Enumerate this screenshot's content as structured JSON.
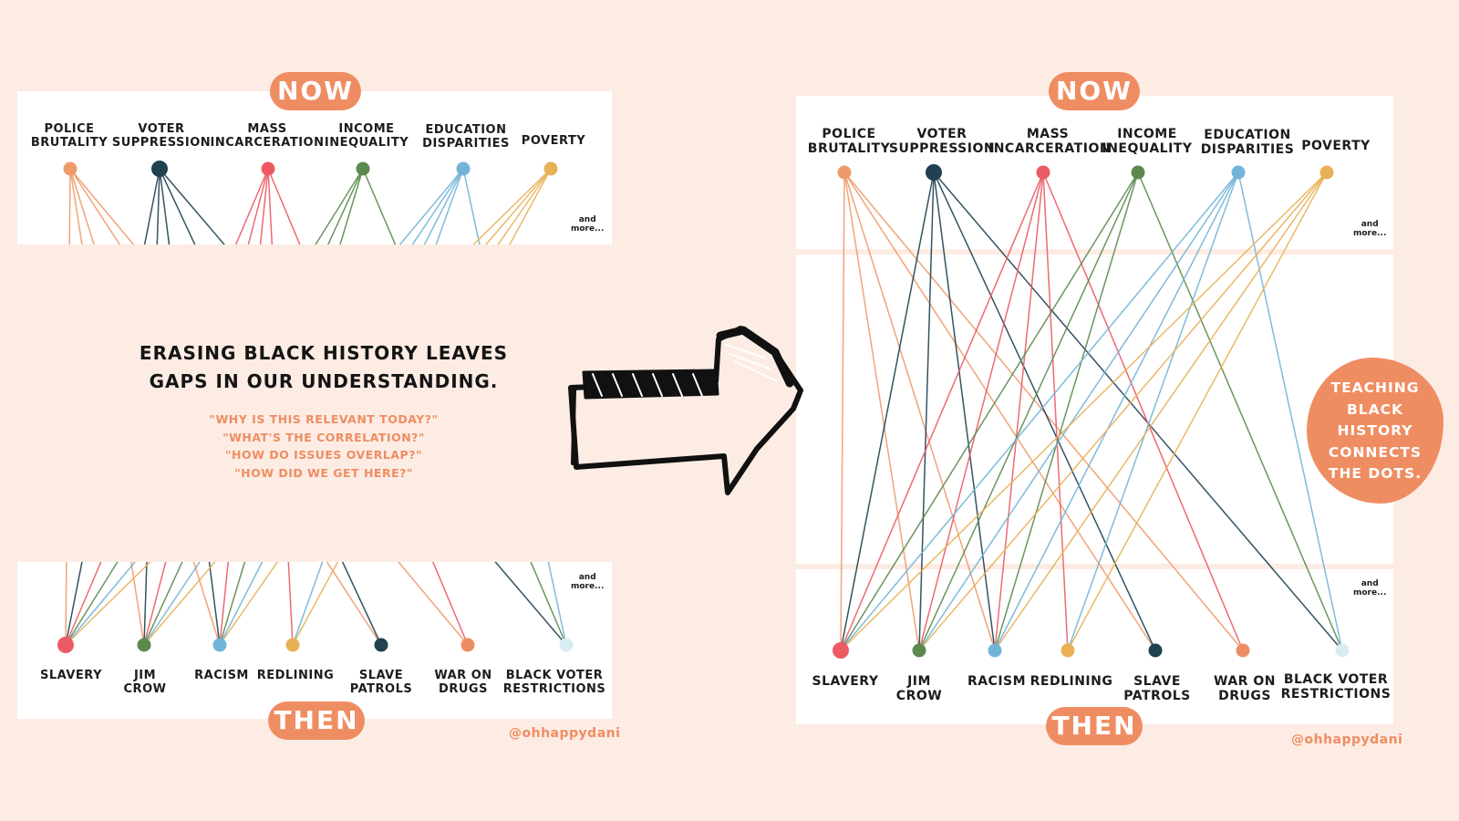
{
  "now_label": "NOW",
  "then_label": "THEN",
  "and_more": "and\nmore...",
  "handle": "@ohhappydani",
  "headline": "ERASING BLACK HISTORY LEAVES\nGAPS IN OUR UNDERSTANDING.",
  "questions": [
    "\"WHY IS THIS RELEVANT TODAY?\"",
    "\"WHAT'S THE CORRELATION?\"",
    "\"HOW DO ISSUES OVERLAP?\"",
    "\"HOW DID WE GET HERE?\""
  ],
  "teaching_callout": "TEACHING\nBLACK\nHISTORY\nCONNECTS\nTHE DOTS.",
  "now_items": [
    {
      "label": "POLICE\nBRUTALITY",
      "color": "#ef9a6b"
    },
    {
      "label": "VOTER\nSUPPRESSION",
      "color": "#1f4150"
    },
    {
      "label": "MASS\nINCARCERATION",
      "color": "#ec5a64"
    },
    {
      "label": "INCOME\nINEQUALITY",
      "color": "#5c8a4e"
    },
    {
      "label": "EDUCATION\nDISPARITIES",
      "color": "#71b4d8"
    },
    {
      "label": "POVERTY",
      "color": "#e8b156"
    }
  ],
  "then_items": [
    {
      "label": "SLAVERY",
      "color": "#ec5a64"
    },
    {
      "label": "JIM\nCROW",
      "color": "#5c8a4e"
    },
    {
      "label": "RACISM",
      "color": "#71b4d8"
    },
    {
      "label": "REDLINING",
      "color": "#e8b156"
    },
    {
      "label": "SLAVE\nPATROLS",
      "color": "#1f4150"
    },
    {
      "label": "WAR ON\nDRUGS",
      "color": "#ef8d62"
    },
    {
      "label": "BLACK VOTER\nRESTRICTIONS",
      "color": "#d8ecf4"
    }
  ],
  "connections": [
    {
      "from": 0,
      "to": [
        0,
        1,
        2,
        4,
        5
      ]
    },
    {
      "from": 1,
      "to": [
        0,
        1,
        2,
        4,
        6
      ]
    },
    {
      "from": 2,
      "to": [
        0,
        1,
        2,
        3,
        5
      ]
    },
    {
      "from": 3,
      "to": [
        0,
        1,
        2,
        6
      ]
    },
    {
      "from": 4,
      "to": [
        0,
        1,
        2,
        3,
        6
      ]
    },
    {
      "from": 5,
      "to": [
        0,
        1,
        2,
        3
      ]
    }
  ]
}
